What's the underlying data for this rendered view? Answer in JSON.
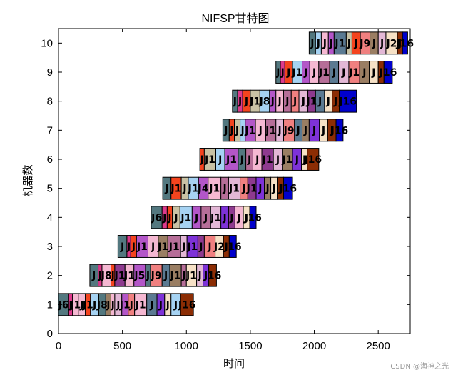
{
  "chart_data": {
    "type": "gantt",
    "title": "NIFSP甘特图",
    "xlabel": "时间",
    "ylabel": "机器数",
    "xlim": [
      0,
      2750
    ],
    "ylim": [
      0,
      10.5
    ],
    "xticks": [
      "0",
      "500",
      "1000",
      "1500",
      "2000",
      "2500"
    ],
    "yticks": [
      "0",
      "1",
      "2",
      "3",
      "4",
      "5",
      "6",
      "7",
      "8",
      "9",
      "10"
    ],
    "grid": false,
    "palette": [
      "#53787F",
      "#DE3A8C",
      "#F5B8D2",
      "#F4441E",
      "#C9C2A4",
      "#A6D3F3",
      "#B356C8",
      "#F08080",
      "#5B7A92",
      "#B66E98",
      "#E3B8D6",
      "#8E3A8F",
      "#9A7E63",
      "#7E32D8",
      "#F6E1C6",
      "#8C2D04",
      "#0000CC"
    ],
    "machines": [
      {
        "machine": 1,
        "operations": [
          {
            "job": "J6",
            "start": 0,
            "end": 80,
            "color": 0
          },
          {
            "job": "J",
            "start": 80,
            "end": 110,
            "color": 1
          },
          {
            "job": "J1",
            "start": 110,
            "end": 155,
            "color": 2
          },
          {
            "job": "J",
            "start": 155,
            "end": 210,
            "color": 2
          },
          {
            "job": "J1",
            "start": 210,
            "end": 250,
            "color": 3
          },
          {
            "job": "J",
            "start": 250,
            "end": 315,
            "color": 5
          },
          {
            "job": "J8",
            "start": 315,
            "end": 370,
            "color": 0
          },
          {
            "job": "J",
            "start": 370,
            "end": 410,
            "color": 12
          },
          {
            "job": "J",
            "start": 410,
            "end": 440,
            "color": 2
          },
          {
            "job": "J",
            "start": 440,
            "end": 495,
            "color": 10
          },
          {
            "job": "J1",
            "start": 495,
            "end": 545,
            "color": 6
          },
          {
            "job": "J",
            "start": 545,
            "end": 595,
            "color": 7
          },
          {
            "job": "J1",
            "start": 595,
            "end": 690,
            "color": 2
          },
          {
            "job": "J",
            "start": 690,
            "end": 770,
            "color": 8
          },
          {
            "job": "J",
            "start": 770,
            "end": 830,
            "color": 13
          },
          {
            "job": "J",
            "start": 830,
            "end": 880,
            "color": 14
          },
          {
            "job": "J",
            "start": 880,
            "end": 955,
            "color": 5
          },
          {
            "job": "J16",
            "start": 955,
            "end": 1055,
            "color": 15
          }
        ]
      },
      {
        "machine": 2,
        "operations": [
          {
            "job": "J",
            "start": 245,
            "end": 310,
            "color": 0
          },
          {
            "job": "J",
            "start": 310,
            "end": 340,
            "color": 1
          },
          {
            "job": "J8",
            "start": 340,
            "end": 410,
            "color": 2
          },
          {
            "job": "J",
            "start": 410,
            "end": 440,
            "color": 3
          },
          {
            "job": "J1",
            "start": 440,
            "end": 520,
            "color": 11
          },
          {
            "job": "J1",
            "start": 520,
            "end": 590,
            "color": 2
          },
          {
            "job": "J5",
            "start": 590,
            "end": 680,
            "color": 6
          },
          {
            "job": "J",
            "start": 680,
            "end": 720,
            "color": 0
          },
          {
            "job": "J9",
            "start": 720,
            "end": 810,
            "color": 7
          },
          {
            "job": "J",
            "start": 810,
            "end": 870,
            "color": 8
          },
          {
            "job": "J1",
            "start": 870,
            "end": 960,
            "color": 12
          },
          {
            "job": "J",
            "start": 960,
            "end": 1000,
            "color": 9
          },
          {
            "job": "J1",
            "start": 1000,
            "end": 1080,
            "color": 14
          },
          {
            "job": "J",
            "start": 1080,
            "end": 1130,
            "color": 10
          },
          {
            "job": "J",
            "start": 1130,
            "end": 1175,
            "color": 13
          },
          {
            "job": "J16",
            "start": 1175,
            "end": 1235,
            "color": 15
          }
        ]
      },
      {
        "machine": 3,
        "operations": [
          {
            "job": "J",
            "start": 465,
            "end": 535,
            "color": 0
          },
          {
            "job": "J",
            "start": 535,
            "end": 565,
            "color": 1
          },
          {
            "job": "J",
            "start": 565,
            "end": 610,
            "color": 3
          },
          {
            "job": "J1",
            "start": 610,
            "end": 700,
            "color": 6
          },
          {
            "job": "J",
            "start": 700,
            "end": 780,
            "color": 2
          },
          {
            "job": "J1",
            "start": 780,
            "end": 855,
            "color": 12
          },
          {
            "job": "J1",
            "start": 855,
            "end": 955,
            "color": 9
          },
          {
            "job": "J",
            "start": 955,
            "end": 1005,
            "color": 10
          },
          {
            "job": "J1",
            "start": 1005,
            "end": 1090,
            "color": 13
          },
          {
            "job": "J",
            "start": 1090,
            "end": 1140,
            "color": 11
          },
          {
            "job": "J",
            "start": 1140,
            "end": 1225,
            "color": 7
          },
          {
            "job": "J2",
            "start": 1225,
            "end": 1290,
            "color": 14
          },
          {
            "job": "J",
            "start": 1290,
            "end": 1335,
            "color": 15
          },
          {
            "job": "J16",
            "start": 1335,
            "end": 1390,
            "color": 16
          }
        ]
      },
      {
        "machine": 4,
        "operations": [
          {
            "job": "J6",
            "start": 725,
            "end": 810,
            "color": 0
          },
          {
            "job": "J",
            "start": 810,
            "end": 850,
            "color": 1
          },
          {
            "job": "J",
            "start": 850,
            "end": 890,
            "color": 3
          },
          {
            "job": "J",
            "start": 890,
            "end": 950,
            "color": 4
          },
          {
            "job": "J1",
            "start": 950,
            "end": 1045,
            "color": 5
          },
          {
            "job": "J",
            "start": 1045,
            "end": 1115,
            "color": 6
          },
          {
            "job": "J",
            "start": 1115,
            "end": 1190,
            "color": 9
          },
          {
            "job": "J1",
            "start": 1190,
            "end": 1270,
            "color": 10
          },
          {
            "job": "J",
            "start": 1270,
            "end": 1330,
            "color": 13
          },
          {
            "job": "J",
            "start": 1330,
            "end": 1380,
            "color": 11
          },
          {
            "job": "J",
            "start": 1380,
            "end": 1445,
            "color": 2
          },
          {
            "job": "J",
            "start": 1445,
            "end": 1495,
            "color": 14
          },
          {
            "job": "J16",
            "start": 1495,
            "end": 1545,
            "color": 16
          }
        ]
      },
      {
        "machine": 5,
        "operations": [
          {
            "job": "J",
            "start": 815,
            "end": 880,
            "color": 0
          },
          {
            "job": "J1",
            "start": 880,
            "end": 960,
            "color": 3
          },
          {
            "job": "J",
            "start": 960,
            "end": 1015,
            "color": 4
          },
          {
            "job": "J1",
            "start": 1015,
            "end": 1095,
            "color": 5
          },
          {
            "job": "J4",
            "start": 1095,
            "end": 1170,
            "color": 6
          },
          {
            "job": "J1",
            "start": 1170,
            "end": 1270,
            "color": 2
          },
          {
            "job": "J",
            "start": 1270,
            "end": 1330,
            "color": 9
          },
          {
            "job": "J1",
            "start": 1330,
            "end": 1420,
            "color": 10
          },
          {
            "job": "J",
            "start": 1420,
            "end": 1480,
            "color": 7
          },
          {
            "job": "J1",
            "start": 1480,
            "end": 1545,
            "color": 11
          },
          {
            "job": "J",
            "start": 1545,
            "end": 1610,
            "color": 13
          },
          {
            "job": "J",
            "start": 1610,
            "end": 1660,
            "color": 12
          },
          {
            "job": "J",
            "start": 1660,
            "end": 1710,
            "color": 14
          },
          {
            "job": "J",
            "start": 1710,
            "end": 1760,
            "color": 15
          },
          {
            "job": "J16",
            "start": 1760,
            "end": 1830,
            "color": 16
          }
        ]
      },
      {
        "machine": 6,
        "operations": [
          {
            "job": "J",
            "start": 1105,
            "end": 1140,
            "color": 3
          },
          {
            "job": "J1",
            "start": 1140,
            "end": 1230,
            "color": 4
          },
          {
            "job": "J",
            "start": 1230,
            "end": 1300,
            "color": 5
          },
          {
            "job": "J1",
            "start": 1300,
            "end": 1405,
            "color": 6
          },
          {
            "job": "J",
            "start": 1405,
            "end": 1465,
            "color": 0
          },
          {
            "job": "J",
            "start": 1465,
            "end": 1520,
            "color": 9
          },
          {
            "job": "J",
            "start": 1520,
            "end": 1590,
            "color": 2
          },
          {
            "job": "J1",
            "start": 1590,
            "end": 1680,
            "color": 11
          },
          {
            "job": "J",
            "start": 1680,
            "end": 1750,
            "color": 10
          },
          {
            "job": "J1",
            "start": 1750,
            "end": 1830,
            "color": 12
          },
          {
            "job": "J",
            "start": 1830,
            "end": 1900,
            "color": 13
          },
          {
            "job": "J",
            "start": 1900,
            "end": 1945,
            "color": 14
          },
          {
            "job": "J16",
            "start": 1945,
            "end": 2035,
            "color": 15
          }
        ]
      },
      {
        "machine": 7,
        "operations": [
          {
            "job": "J",
            "start": 1285,
            "end": 1335,
            "color": 0
          },
          {
            "job": "J",
            "start": 1335,
            "end": 1375,
            "color": 3
          },
          {
            "job": "J",
            "start": 1375,
            "end": 1420,
            "color": 4
          },
          {
            "job": "J",
            "start": 1420,
            "end": 1460,
            "color": 5
          },
          {
            "job": "J1",
            "start": 1460,
            "end": 1540,
            "color": 6
          },
          {
            "job": "J",
            "start": 1540,
            "end": 1620,
            "color": 2
          },
          {
            "job": "J1",
            "start": 1620,
            "end": 1700,
            "color": 9
          },
          {
            "job": "J",
            "start": 1700,
            "end": 1760,
            "color": 10
          },
          {
            "job": "J9",
            "start": 1760,
            "end": 1845,
            "color": 7
          },
          {
            "job": "J",
            "start": 1845,
            "end": 1905,
            "color": 8
          },
          {
            "job": "J",
            "start": 1905,
            "end": 1960,
            "color": 12
          },
          {
            "job": "J",
            "start": 1960,
            "end": 2040,
            "color": 13
          },
          {
            "job": "J",
            "start": 2040,
            "end": 2105,
            "color": 14
          },
          {
            "job": "J",
            "start": 2105,
            "end": 2170,
            "color": 15
          },
          {
            "job": "J16",
            "start": 2170,
            "end": 2225,
            "color": 16
          }
        ]
      },
      {
        "machine": 8,
        "operations": [
          {
            "job": "J",
            "start": 1360,
            "end": 1400,
            "color": 0
          },
          {
            "job": "J",
            "start": 1400,
            "end": 1440,
            "color": 1
          },
          {
            "job": "J",
            "start": 1440,
            "end": 1500,
            "color": 3
          },
          {
            "job": "J1",
            "start": 1500,
            "end": 1575,
            "color": 4
          },
          {
            "job": "J8",
            "start": 1575,
            "end": 1650,
            "color": 5
          },
          {
            "job": "J",
            "start": 1650,
            "end": 1700,
            "color": 6
          },
          {
            "job": "J",
            "start": 1700,
            "end": 1760,
            "color": 2
          },
          {
            "job": "J",
            "start": 1760,
            "end": 1820,
            "color": 9
          },
          {
            "job": "J",
            "start": 1820,
            "end": 1880,
            "color": 7
          },
          {
            "job": "J",
            "start": 1880,
            "end": 1950,
            "color": 10
          },
          {
            "job": "J1",
            "start": 1950,
            "end": 2010,
            "color": 11
          },
          {
            "job": "J",
            "start": 2010,
            "end": 2080,
            "color": 8
          },
          {
            "job": "J",
            "start": 2080,
            "end": 2140,
            "color": 14
          },
          {
            "job": "J",
            "start": 2140,
            "end": 2195,
            "color": 15
          },
          {
            "job": "J16",
            "start": 2195,
            "end": 2330,
            "color": 16
          }
        ]
      },
      {
        "machine": 9,
        "operations": [
          {
            "job": "J",
            "start": 1700,
            "end": 1735,
            "color": 0
          },
          {
            "job": "J",
            "start": 1735,
            "end": 1770,
            "color": 1
          },
          {
            "job": "J",
            "start": 1770,
            "end": 1830,
            "color": 3
          },
          {
            "job": "J1",
            "start": 1830,
            "end": 1905,
            "color": 5
          },
          {
            "job": "J",
            "start": 1905,
            "end": 1965,
            "color": 6
          },
          {
            "job": "J",
            "start": 1965,
            "end": 2035,
            "color": 2
          },
          {
            "job": "J1",
            "start": 2035,
            "end": 2120,
            "color": 9
          },
          {
            "job": "J",
            "start": 2120,
            "end": 2190,
            "color": 8
          },
          {
            "job": "J",
            "start": 2190,
            "end": 2270,
            "color": 10
          },
          {
            "job": "J1",
            "start": 2270,
            "end": 2355,
            "color": 7
          },
          {
            "job": "J",
            "start": 2355,
            "end": 2430,
            "color": 12
          },
          {
            "job": "J",
            "start": 2430,
            "end": 2500,
            "color": 14
          },
          {
            "job": "J",
            "start": 2500,
            "end": 2545,
            "color": 15
          },
          {
            "job": "J16",
            "start": 2545,
            "end": 2610,
            "color": 16
          }
        ]
      },
      {
        "machine": 10,
        "operations": [
          {
            "job": "J",
            "start": 1960,
            "end": 2010,
            "color": 0
          },
          {
            "job": "J",
            "start": 2010,
            "end": 2055,
            "color": 5
          },
          {
            "job": "J",
            "start": 2055,
            "end": 2110,
            "color": 2
          },
          {
            "job": "J",
            "start": 2110,
            "end": 2155,
            "color": 6
          },
          {
            "job": "J1",
            "start": 2155,
            "end": 2250,
            "color": 8
          },
          {
            "job": "J",
            "start": 2250,
            "end": 2295,
            "color": 4
          },
          {
            "job": "J",
            "start": 2295,
            "end": 2360,
            "color": 3
          },
          {
            "job": "J9",
            "start": 2360,
            "end": 2435,
            "color": 7
          },
          {
            "job": "J",
            "start": 2435,
            "end": 2500,
            "color": 12
          },
          {
            "job": "J",
            "start": 2500,
            "end": 2560,
            "color": 10
          },
          {
            "job": "J2",
            "start": 2560,
            "end": 2650,
            "color": 14
          },
          {
            "job": "J",
            "start": 2650,
            "end": 2690,
            "color": 15
          },
          {
            "job": "J16",
            "start": 2690,
            "end": 2730,
            "color": 16
          }
        ]
      }
    ]
  },
  "watermark": "CSDN @海神之光"
}
